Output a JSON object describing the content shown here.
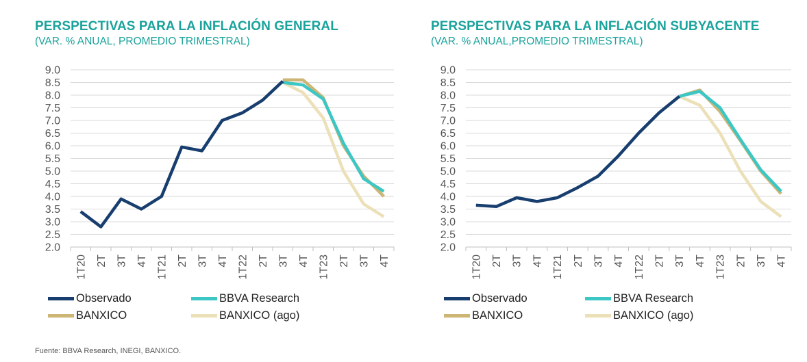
{
  "source": "Fuente: BBVA Research, INEGI, BANXICO.",
  "colors": {
    "observado": "#173e6e",
    "bbva": "#3cc7c5",
    "banxico": "#cdb575",
    "banxico_ago": "#ece0b8",
    "grid": "#d9d9d9",
    "title": "#1aa39c"
  },
  "chart_data": [
    {
      "type": "line",
      "title": "PERSPECTIVAS PARA LA INFLACIÓN GENERAL",
      "subtitle": "(VAR. % ANUAL, PROMEDIO TRIMESTRAL)",
      "categories": [
        "1T20",
        "2T",
        "3T",
        "4T",
        "1T21",
        "2T",
        "3T",
        "4T",
        "1T22",
        "2T",
        "3T",
        "4T",
        "1T23",
        "2T",
        "3T",
        "4T"
      ],
      "ylim": [
        2.0,
        9.0
      ],
      "yticks": [
        "2.0",
        "2.5",
        "3.0",
        "3.5",
        "4.0",
        "4.5",
        "5.0",
        "5.5",
        "6.0",
        "6.5",
        "7.0",
        "7.5",
        "8.0",
        "8.5",
        "9.0"
      ],
      "series": [
        {
          "name": "Observado",
          "color_key": "observado",
          "values": [
            3.4,
            2.8,
            3.9,
            3.5,
            4.0,
            5.95,
            5.8,
            7.0,
            7.3,
            7.8,
            8.55,
            null,
            null,
            null,
            null,
            null
          ]
        },
        {
          "name": "BBVA Research",
          "color_key": "bbva",
          "values": [
            null,
            null,
            null,
            null,
            null,
            null,
            null,
            null,
            null,
            null,
            8.5,
            8.4,
            7.85,
            6.1,
            4.7,
            4.2
          ]
        },
        {
          "name": "BANXICO",
          "color_key": "banxico",
          "values": [
            null,
            null,
            null,
            null,
            null,
            null,
            null,
            null,
            null,
            null,
            8.6,
            8.6,
            7.9,
            6.0,
            4.8,
            4.0
          ]
        },
        {
          "name": "BANXICO (ago)",
          "color_key": "banxico_ago",
          "values": [
            null,
            null,
            null,
            null,
            null,
            null,
            null,
            null,
            null,
            null,
            8.5,
            8.1,
            7.1,
            5.0,
            3.7,
            3.2
          ]
        }
      ],
      "legend": [
        "Observado",
        "BBVA Research",
        "BANXICO",
        "BANXICO (ago)"
      ]
    },
    {
      "type": "line",
      "title": "PERSPECTIVAS PARA LA INFLACIÓN SUBYACENTE",
      "subtitle": "(VAR. % ANUAL,PROMEDIO TRIMESTRAL)",
      "categories": [
        "1T20",
        "2T",
        "3T",
        "4T",
        "1T21",
        "2T",
        "3T",
        "4T",
        "1T22",
        "2T",
        "3T",
        "4T",
        "1T23",
        "2T",
        "3T",
        "4T"
      ],
      "ylim": [
        2.0,
        9.0
      ],
      "yticks": [
        "2.0",
        "2.5",
        "3.0",
        "3.5",
        "4.0",
        "4.5",
        "5.0",
        "5.5",
        "6.0",
        "6.5",
        "7.0",
        "7.5",
        "8.0",
        "8.5",
        "9.0"
      ],
      "series": [
        {
          "name": "Observado",
          "color_key": "observado",
          "values": [
            3.65,
            3.6,
            3.95,
            3.8,
            3.95,
            4.35,
            4.8,
            5.6,
            6.5,
            7.3,
            7.95,
            null,
            null,
            null,
            null,
            null
          ]
        },
        {
          "name": "BBVA Research",
          "color_key": "bbva",
          "values": [
            null,
            null,
            null,
            null,
            null,
            null,
            null,
            null,
            null,
            null,
            7.95,
            8.15,
            7.5,
            6.25,
            5.05,
            4.2
          ]
        },
        {
          "name": "BANXICO",
          "color_key": "banxico",
          "values": [
            null,
            null,
            null,
            null,
            null,
            null,
            null,
            null,
            null,
            null,
            7.95,
            8.2,
            7.35,
            6.2,
            5.0,
            4.1
          ]
        },
        {
          "name": "BANXICO (ago)",
          "color_key": "banxico_ago",
          "values": [
            null,
            null,
            null,
            null,
            null,
            null,
            null,
            null,
            null,
            null,
            7.95,
            7.6,
            6.5,
            5.0,
            3.8,
            3.2
          ]
        }
      ],
      "legend": [
        "Observado",
        "BBVA Research",
        "BANXICO",
        "BANXICO (ago)"
      ]
    }
  ]
}
